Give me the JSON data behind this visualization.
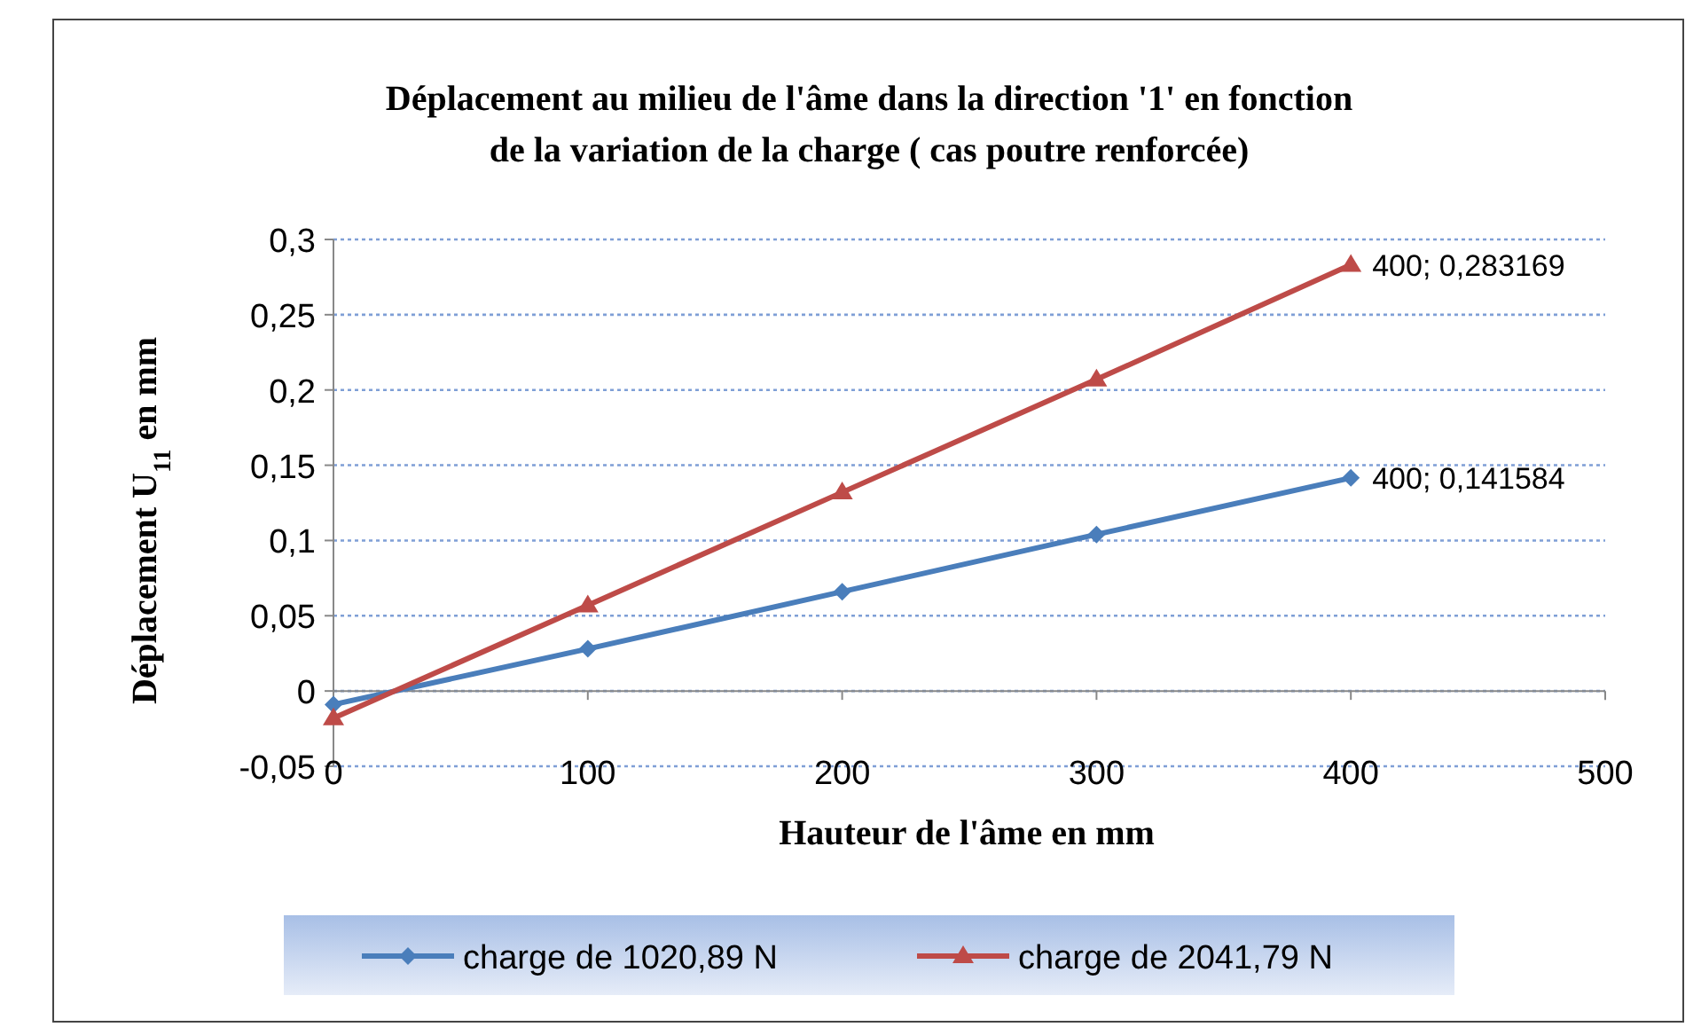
{
  "chart_data": {
    "type": "line",
    "title": "Déplacement  au milieu de l'âme dans la direction '1' en fonction\nde la variation de la charge ( cas poutre renforcée)",
    "xlabel": "Hauteur de l'âme en mm",
    "ylabel": "Déplacement U$_{11}$ en mm",
    "x": [
      0,
      100,
      200,
      300,
      400
    ],
    "series": [
      {
        "name": "charge de 1020,89 N",
        "color": "#4a7ebb",
        "marker": "diamond",
        "values": [
          -0.009,
          0.028,
          0.066,
          0.104,
          0.141584
        ],
        "value_labels": [
          null,
          null,
          null,
          null,
          "400; 0,141584"
        ]
      },
      {
        "name": "charge de 2041,79 N",
        "color": "#be4b48",
        "marker": "triangle",
        "values": [
          -0.018,
          0.057,
          0.132,
          0.207,
          0.283169
        ],
        "value_labels": [
          null,
          null,
          null,
          null,
          "400; 0,283169"
        ]
      }
    ],
    "xlim": [
      0,
      500
    ],
    "xticks": [
      0,
      100,
      200,
      300,
      400,
      500
    ],
    "ylim": [
      -0.05,
      0.3
    ],
    "yticks": [
      {
        "value": -0.05,
        "label": "-0,05"
      },
      0,
      {
        "value": 0.05,
        "label": "0,05"
      },
      {
        "value": 0.1,
        "label": "0,1"
      },
      {
        "value": 0.15,
        "label": "0,15"
      },
      {
        "value": 0.2,
        "label": "0,2"
      },
      {
        "value": 0.25,
        "label": "0,25"
      },
      {
        "value": 0.3,
        "label": "0,3"
      }
    ],
    "grid": "y",
    "legend": "bottom",
    "line_style": "solid"
  }
}
